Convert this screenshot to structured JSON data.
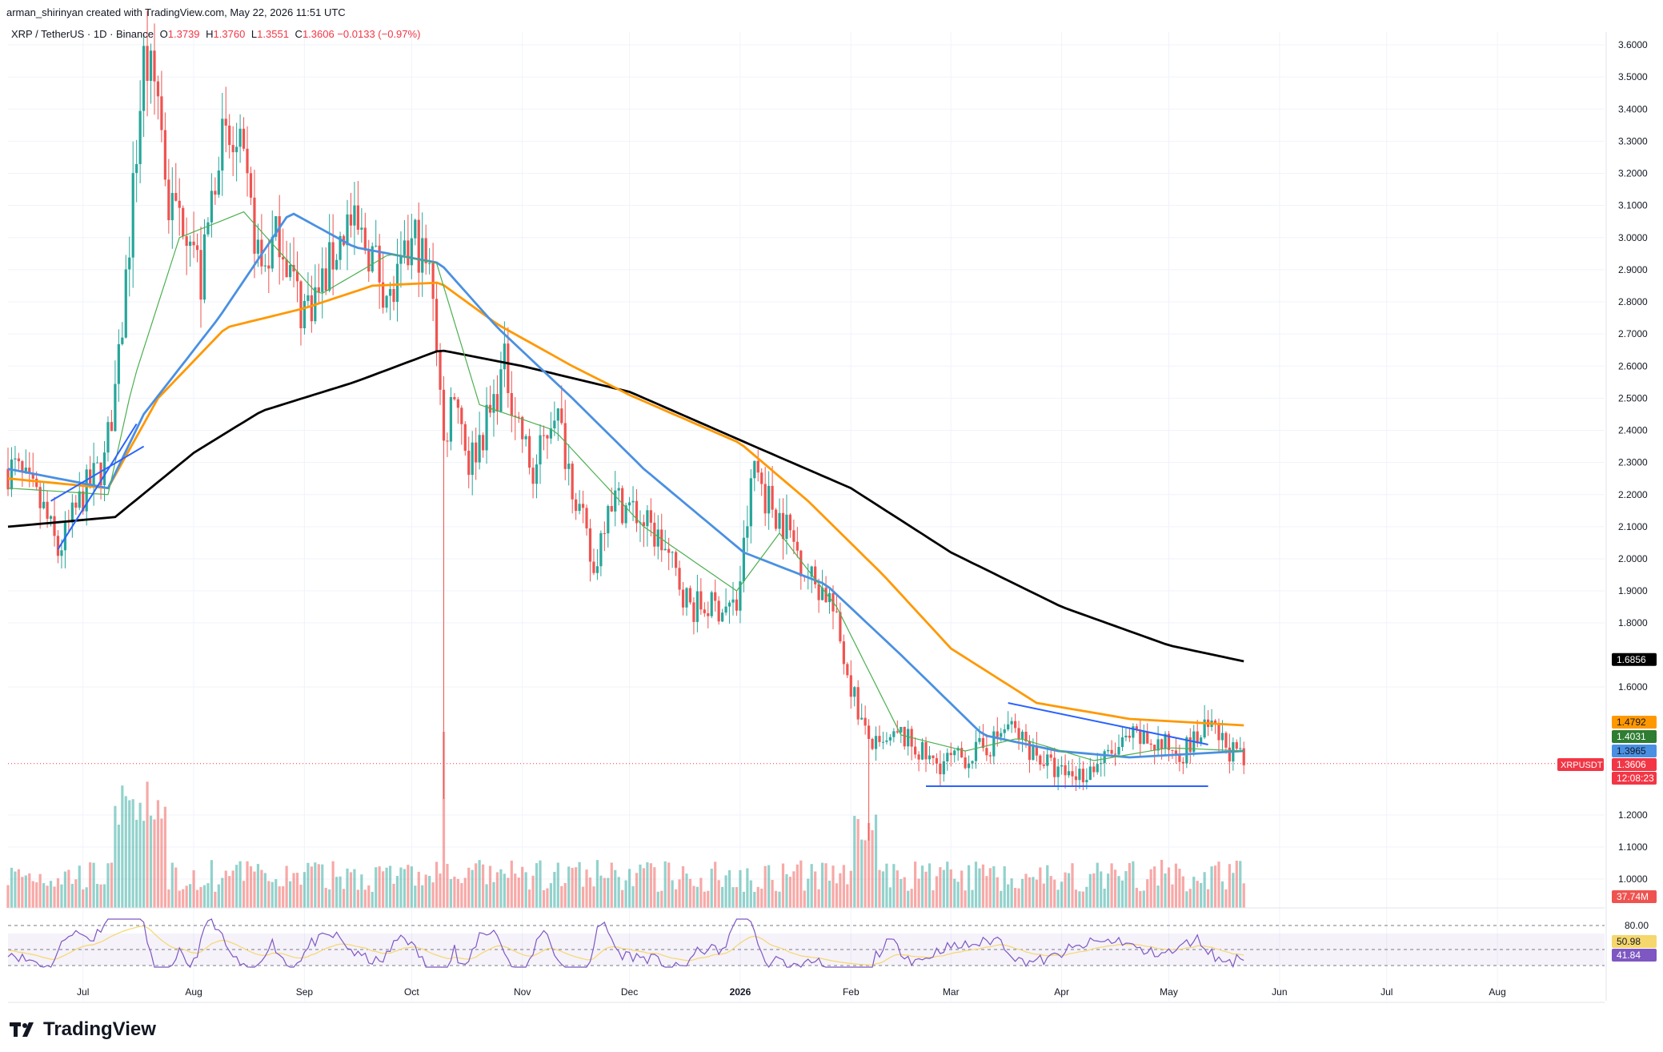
{
  "header": {
    "author_line": "arman_shirinyan created with TradingView.com, May 22, 2026 11:51 UTC"
  },
  "symbol": {
    "title": "XRP / TetherUS · 1D · Binance",
    "open_label": "O",
    "open": "1.3739",
    "high_label": "H",
    "high": "1.3760",
    "low_label": "L",
    "low": "1.3551",
    "close_label": "C",
    "close": "1.3606",
    "change": "−0.0133 (−0.97%)"
  },
  "brand": {
    "name": "TradingView",
    "icon": "tradingview-logo-icon"
  },
  "colors": {
    "up": "#26a69a",
    "down": "#ef5350",
    "ma_fast": "#4caf50",
    "ma_mid": "#4a90e2",
    "ma_slow": "#ff9800",
    "ma_long": "#000000",
    "rsi": "#7e57c2",
    "rsi_ma": "#f5d76e",
    "trendline": "#2962ff"
  },
  "chart_data": {
    "type": "candlestick",
    "symbol": "XRPUSDT",
    "y_axis": {
      "ticks": [
        "3.6000",
        "3.5000",
        "3.4000",
        "3.3000",
        "3.2000",
        "3.1000",
        "3.0000",
        "2.9000",
        "2.8000",
        "2.7000",
        "2.6000",
        "2.5000",
        "2.4000",
        "2.3000",
        "2.2000",
        "2.1000",
        "2.0000",
        "1.9000",
        "1.8000",
        "1.6000",
        "1.2000",
        "1.1000",
        "1.0000"
      ],
      "ylim": [
        0.95,
        3.65
      ]
    },
    "x_axis": {
      "labels": [
        "Jul",
        "Aug",
        "Sep",
        "Oct",
        "Nov",
        "Dec",
        "2026",
        "Feb",
        "Mar",
        "Apr",
        "May",
        "Jun",
        "Jul",
        "Aug"
      ]
    },
    "price_waypoints": [
      [
        "2025-06-12",
        2.28
      ],
      [
        "2025-06-20",
        2.15
      ],
      [
        "2025-06-24",
        2.02
      ],
      [
        "2025-07-01",
        2.2
      ],
      [
        "2025-07-07",
        2.3
      ],
      [
        "2025-07-11",
        2.6
      ],
      [
        "2025-07-14",
        3.0
      ],
      [
        "2025-07-18",
        3.55
      ],
      [
        "2025-07-22",
        3.45
      ],
      [
        "2025-07-25",
        3.1
      ],
      [
        "2025-07-31",
        3.05
      ],
      [
        "2025-08-03",
        2.85
      ],
      [
        "2025-08-08",
        3.3
      ],
      [
        "2025-08-14",
        3.25
      ],
      [
        "2025-08-20",
        2.9
      ],
      [
        "2025-08-25",
        3.02
      ],
      [
        "2025-08-31",
        2.78
      ],
      [
        "2025-09-05",
        2.83
      ],
      [
        "2025-09-13",
        3.05
      ],
      [
        "2025-09-20",
        2.95
      ],
      [
        "2025-09-25",
        2.8
      ],
      [
        "2025-10-02",
        3.0
      ],
      [
        "2025-10-07",
        2.85
      ],
      [
        "2025-10-10",
        2.35
      ],
      [
        "2025-10-13",
        2.55
      ],
      [
        "2025-10-17",
        2.3
      ],
      [
        "2025-10-23",
        2.45
      ],
      [
        "2025-10-27",
        2.6
      ],
      [
        "2025-11-04",
        2.25
      ],
      [
        "2025-11-10",
        2.48
      ],
      [
        "2025-11-16",
        2.2
      ],
      [
        "2025-11-21",
        1.95
      ],
      [
        "2025-11-25",
        2.2
      ],
      [
        "2025-12-02",
        2.15
      ],
      [
        "2025-12-10",
        2.05
      ],
      [
        "2025-12-18",
        1.85
      ],
      [
        "2025-12-26",
        1.85
      ],
      [
        "2025-12-31",
        1.85
      ],
      [
        "2026-01-05",
        2.3
      ],
      [
        "2026-01-08",
        2.2
      ],
      [
        "2026-01-14",
        2.1
      ],
      [
        "2026-01-20",
        1.95
      ],
      [
        "2026-01-26",
        1.88
      ],
      [
        "2026-01-31",
        1.65
      ],
      [
        "2026-02-05",
        1.45
      ],
      [
        "2026-02-09",
        1.4
      ],
      [
        "2026-02-15",
        1.45
      ],
      [
        "2026-02-24",
        1.36
      ],
      [
        "2026-03-05",
        1.38
      ],
      [
        "2026-03-12",
        1.42
      ],
      [
        "2026-03-17",
        1.48
      ],
      [
        "2026-03-24",
        1.4
      ],
      [
        "2026-03-31",
        1.33
      ],
      [
        "2026-04-07",
        1.33
      ],
      [
        "2026-04-14",
        1.38
      ],
      [
        "2026-04-21",
        1.44
      ],
      [
        "2026-04-28",
        1.42
      ],
      [
        "2026-05-05",
        1.4
      ],
      [
        "2026-05-12",
        1.47
      ],
      [
        "2026-05-15",
        1.44
      ],
      [
        "2026-05-22",
        1.36
      ]
    ],
    "moving_averages": [
      {
        "color": "ma_long",
        "points": [
          [
            "2025-06-10",
            2.1
          ],
          [
            "2025-07-10",
            2.13
          ],
          [
            "2025-08-01",
            2.33
          ],
          [
            "2025-08-20",
            2.46
          ],
          [
            "2025-09-15",
            2.55
          ],
          [
            "2025-10-09",
            2.65
          ],
          [
            "2025-11-01",
            2.6
          ],
          [
            "2025-12-01",
            2.52
          ],
          [
            "2026-01-05",
            2.35
          ],
          [
            "2026-02-01",
            2.22
          ],
          [
            "2026-03-01",
            2.02
          ],
          [
            "2026-04-01",
            1.85
          ],
          [
            "2026-05-01",
            1.73
          ],
          [
            "2026-05-22",
            1.68
          ]
        ]
      },
      {
        "color": "ma_slow",
        "points": [
          [
            "2025-06-10",
            2.25
          ],
          [
            "2025-07-08",
            2.22
          ],
          [
            "2025-07-22",
            2.5
          ],
          [
            "2025-08-10",
            2.72
          ],
          [
            "2025-09-01",
            2.78
          ],
          [
            "2025-09-20",
            2.85
          ],
          [
            "2025-10-09",
            2.86
          ],
          [
            "2025-10-25",
            2.73
          ],
          [
            "2025-11-15",
            2.6
          ],
          [
            "2025-12-01",
            2.51
          ],
          [
            "2026-01-01",
            2.36
          ],
          [
            "2026-01-20",
            2.18
          ],
          [
            "2026-02-10",
            1.95
          ],
          [
            "2026-03-01",
            1.72
          ],
          [
            "2026-03-25",
            1.55
          ],
          [
            "2026-04-20",
            1.5
          ],
          [
            "2026-05-22",
            1.48
          ]
        ]
      },
      {
        "color": "ma_mid",
        "points": [
          [
            "2025-06-10",
            2.28
          ],
          [
            "2025-07-08",
            2.22
          ],
          [
            "2025-07-18",
            2.45
          ],
          [
            "2025-08-08",
            2.75
          ],
          [
            "2025-08-28",
            3.08
          ],
          [
            "2025-09-15",
            2.97
          ],
          [
            "2025-10-09",
            2.92
          ],
          [
            "2025-10-25",
            2.72
          ],
          [
            "2025-11-15",
            2.5
          ],
          [
            "2025-12-05",
            2.28
          ],
          [
            "2026-01-02",
            2.02
          ],
          [
            "2026-01-25",
            1.92
          ],
          [
            "2026-02-15",
            1.7
          ],
          [
            "2026-03-10",
            1.45
          ],
          [
            "2026-03-31",
            1.4
          ],
          [
            "2026-04-20",
            1.38
          ],
          [
            "2026-05-22",
            1.4
          ]
        ]
      },
      {
        "color": "ma_fast",
        "points": [
          [
            "2025-06-10",
            2.22
          ],
          [
            "2025-07-08",
            2.2
          ],
          [
            "2025-07-15",
            2.55
          ],
          [
            "2025-07-28",
            3.0
          ],
          [
            "2025-08-15",
            3.08
          ],
          [
            "2025-09-05",
            2.82
          ],
          [
            "2025-09-25",
            2.95
          ],
          [
            "2025-10-08",
            2.92
          ],
          [
            "2025-10-20",
            2.48
          ],
          [
            "2025-11-10",
            2.4
          ],
          [
            "2025-12-05",
            2.1
          ],
          [
            "2025-12-31",
            1.9
          ],
          [
            "2026-01-12",
            2.08
          ],
          [
            "2026-01-28",
            1.85
          ],
          [
            "2026-02-15",
            1.45
          ],
          [
            "2026-03-05",
            1.4
          ],
          [
            "2026-03-20",
            1.44
          ],
          [
            "2026-04-10",
            1.37
          ],
          [
            "2026-05-01",
            1.41
          ],
          [
            "2026-05-22",
            1.4
          ]
        ]
      }
    ],
    "trendlines": [
      {
        "points": [
          [
            "2025-06-24",
            2.03
          ],
          [
            "2025-07-16",
            2.42
          ]
        ]
      },
      {
        "points": [
          [
            "2025-06-22",
            2.18
          ],
          [
            "2025-07-18",
            2.35
          ]
        ]
      },
      {
        "points": [
          [
            "2026-03-17",
            1.55
          ],
          [
            "2026-05-12",
            1.42
          ]
        ]
      },
      {
        "points": [
          [
            "2026-02-22",
            1.29
          ],
          [
            "2026-05-12",
            1.29
          ]
        ]
      }
    ],
    "price_tags": [
      {
        "label": "1.6856",
        "value": 1.6856,
        "bg": "#000000",
        "fg": "#ffffff"
      },
      {
        "label": "1.4792",
        "value": 1.4792,
        "bg": "#ff9800",
        "fg": "#131722"
      },
      {
        "label": "1.4031",
        "value": 1.4031,
        "bg": "#2e7d32",
        "fg": "#ffffff"
      },
      {
        "label": "1.3965",
        "value": 1.3965,
        "bg": "#4a90e2",
        "fg": "#131722"
      },
      {
        "label": "1.3606",
        "value": 1.3606,
        "bg": "#f23645",
        "fg": "#ffffff"
      }
    ],
    "symbol_tag": "XRPUSDT",
    "countdown": "12:08:23",
    "volume_tag": "37.74M",
    "rsi": {
      "level_high": "80.00",
      "value_ma": "50.98",
      "value": "41.84"
    }
  }
}
